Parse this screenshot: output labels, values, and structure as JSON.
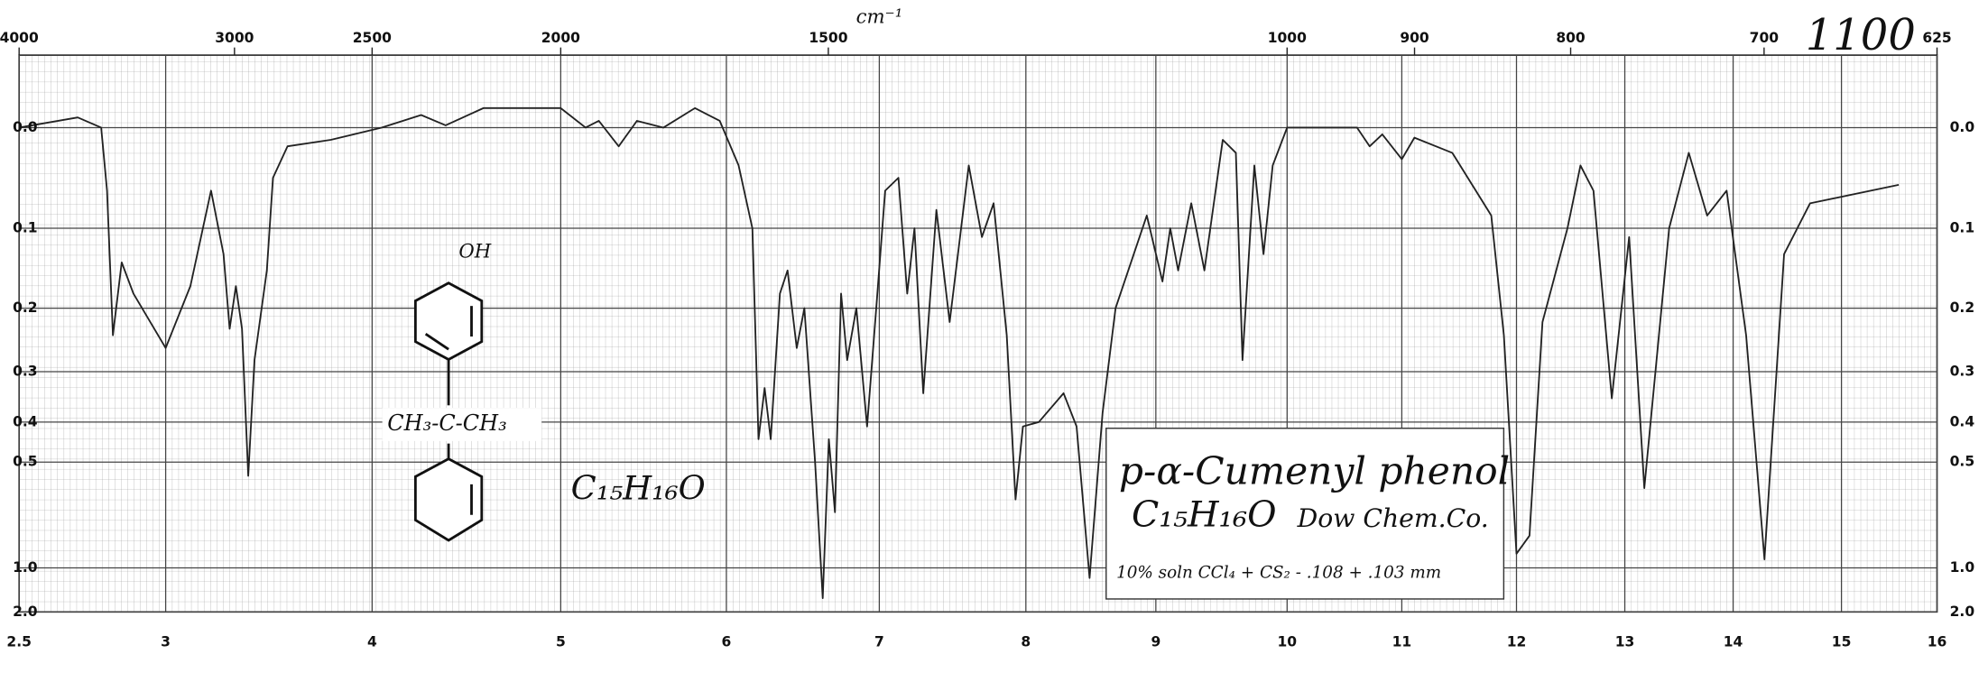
{
  "chart_data": {
    "type": "line",
    "x_unit_top": "cm⁻¹",
    "annotation": "1100",
    "title": "p-α-Cumenyl phenol",
    "formula": "C₁₅H₁₆O",
    "source": "Dow Chem.Co.",
    "sample": "10% soln CCl₄ + CS₂ - .108 + .103 mm",
    "structure_labels": [
      "OH",
      "CH₃-C-CH₃",
      "C₁₅H₁₆O"
    ],
    "color": "#222222",
    "yscale": "absorbance",
    "grid": true,
    "xlim": [
      2.5,
      16
    ],
    "xticks": [
      2.5,
      3,
      4,
      5,
      6,
      7,
      8,
      9,
      10,
      11,
      12,
      13,
      14,
      15,
      16
    ],
    "x2ticks": [
      4000,
      3000,
      2500,
      2000,
      1500,
      1000,
      900,
      800,
      700,
      625
    ],
    "ylim": [
      -0.06,
      2
    ],
    "yticks": [
      {
        "value": 0,
        "label": "0.0"
      },
      0.1,
      0.2,
      0.3,
      0.4,
      0.5,
      {
        "value": 1,
        "label": "1.0"
      },
      {
        "value": 2,
        "label": "2.0"
      }
    ],
    "x": [
      2.5,
      2.7,
      2.78,
      2.8,
      2.82,
      2.85,
      2.89,
      3.0,
      3.12,
      3.22,
      3.28,
      3.31,
      3.34,
      3.37,
      3.4,
      3.43,
      3.49,
      3.52,
      3.59,
      3.8,
      4.05,
      4.26,
      4.39,
      4.59,
      5.0,
      5.15,
      5.23,
      5.35,
      5.46,
      5.62,
      5.81,
      5.96,
      6.08,
      6.17,
      6.21,
      6.25,
      6.29,
      6.35,
      6.4,
      6.46,
      6.51,
      6.58,
      6.63,
      6.67,
      6.71,
      6.75,
      6.79,
      6.85,
      6.92,
      6.98,
      7.04,
      7.13,
      7.19,
      7.24,
      7.3,
      7.39,
      7.48,
      7.61,
      7.7,
      7.78,
      7.87,
      7.93,
      7.98,
      8.1,
      8.29,
      8.39,
      8.49,
      8.59,
      8.69,
      8.93,
      9.05,
      9.11,
      9.17,
      9.27,
      9.37,
      9.51,
      9.61,
      9.66,
      9.75,
      9.82,
      9.89,
      10.0,
      10.61,
      10.72,
      10.83,
      11.0,
      11.11,
      11.44,
      11.78,
      11.89,
      12.0,
      12.12,
      12.24,
      12.47,
      12.59,
      12.71,
      12.88,
      13.04,
      13.18,
      13.41,
      13.59,
      13.76,
      13.94,
      14.12,
      14.29,
      14.47,
      14.71,
      15.6
    ],
    "values": [
      0,
      -0.009,
      0,
      0.06,
      0.24,
      0.14,
      0.18,
      0.26,
      0.17,
      0.06,
      0.13,
      0.23,
      0.17,
      0.23,
      0.54,
      0.28,
      0.15,
      0.047,
      0.017,
      0.011,
      0,
      -0.011,
      -0.002,
      -0.017,
      -0.017,
      0,
      -0.006,
      0.017,
      -0.006,
      0,
      -0.017,
      -0.006,
      0.035,
      0.1,
      0.44,
      0.33,
      0.44,
      0.18,
      0.15,
      0.26,
      0.2,
      0.5,
      1.42,
      0.44,
      0.67,
      0.18,
      0.28,
      0.2,
      0.41,
      0.2,
      0.06,
      0.047,
      0.18,
      0.1,
      0.34,
      0.08,
      0.22,
      0.035,
      0.11,
      0.073,
      0.24,
      0.62,
      0.41,
      0.4,
      0.34,
      0.41,
      1.1,
      0.38,
      0.2,
      0.086,
      0.164,
      0.1,
      0.15,
      0.073,
      0.15,
      0.011,
      0.023,
      0.28,
      0.035,
      0.13,
      0.035,
      0,
      0,
      0.017,
      0.006,
      0.029,
      0.009,
      0.023,
      0.086,
      0.24,
      0.89,
      0.78,
      0.22,
      0.1,
      0.035,
      0.06,
      0.35,
      0.11,
      0.58,
      0.1,
      0.023,
      0.086,
      0.06,
      0.24,
      0.93,
      0.13,
      0.073,
      0.054
    ]
  }
}
